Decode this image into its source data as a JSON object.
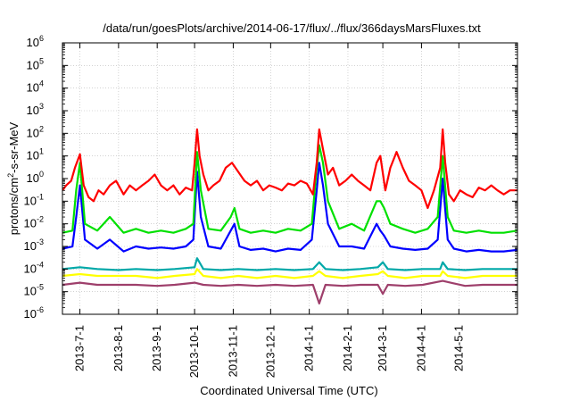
{
  "chart_data": {
    "type": "line",
    "title": "/data/run/goesPlots/archive/2014-06-17/flux/../flux/366daysMarsFluxes.txt",
    "xlabel": "Coordinated Universal Time (UTC)",
    "ylabel": {
      "base": "protons/cm",
      "sup": "2",
      "rest": "-s-sr-MeV"
    },
    "yscale": "log",
    "ylim": [
      1e-06,
      1000000.0
    ],
    "xlim": [
      "2013-06-17",
      "2014-06-17"
    ],
    "grid": true,
    "legend": "none",
    "yticks": [
      {
        "value": 1e-06,
        "base": "10",
        "exp": "-6"
      },
      {
        "value": 1e-05,
        "base": "10",
        "exp": "-5"
      },
      {
        "value": 0.0001,
        "base": "10",
        "exp": "-4"
      },
      {
        "value": 0.001,
        "base": "10",
        "exp": "-3"
      },
      {
        "value": 0.01,
        "base": "10",
        "exp": "-2"
      },
      {
        "value": 0.1,
        "base": "10",
        "exp": "-1"
      },
      {
        "value": 1,
        "base": "10",
        "exp": "0"
      },
      {
        "value": 10,
        "base": "10",
        "exp": "1"
      },
      {
        "value": 100,
        "base": "10",
        "exp": "2"
      },
      {
        "value": 1000,
        "base": "10",
        "exp": "3"
      },
      {
        "value": 10000,
        "base": "10",
        "exp": "4"
      },
      {
        "value": 100000,
        "base": "10",
        "exp": "5"
      },
      {
        "value": 1000000,
        "base": "10",
        "exp": "6"
      }
    ],
    "xticks": [
      {
        "date": "2013-07-01",
        "label": "2013-7-1"
      },
      {
        "date": "2013-08-01",
        "label": "2013-8-1"
      },
      {
        "date": "2013-09-01",
        "label": "2013-9-1"
      },
      {
        "date": "2013-10-01",
        "label": "2013-10-1"
      },
      {
        "date": "2013-11-01",
        "label": "2013-11-1"
      },
      {
        "date": "2013-12-01",
        "label": "2013-12-1"
      },
      {
        "date": "2014-01-01",
        "label": "2014-1-1"
      },
      {
        "date": "2014-02-01",
        "label": "2014-2-1"
      },
      {
        "date": "2014-03-01",
        "label": "2014-3-1"
      },
      {
        "date": "2014-04-01",
        "label": "2014-4-1"
      },
      {
        "date": "2014-05-01",
        "label": "2014-5-1"
      }
    ],
    "series": [
      {
        "color": "#ff0000",
        "x": [
          "2013-06-17",
          "2013-06-20",
          "2013-06-24",
          "2013-06-27",
          "2013-07-01",
          "2013-07-04",
          "2013-07-08",
          "2013-07-12",
          "2013-07-16",
          "2013-07-20",
          "2013-07-25",
          "2013-07-30",
          "2013-08-05",
          "2013-08-10",
          "2013-08-15",
          "2013-08-20",
          "2013-08-25",
          "2013-08-30",
          "2013-09-04",
          "2013-09-09",
          "2013-09-14",
          "2013-09-19",
          "2013-09-24",
          "2013-09-29",
          "2013-10-01",
          "2013-10-03",
          "2013-10-05",
          "2013-10-08",
          "2013-10-12",
          "2013-10-16",
          "2013-10-21",
          "2013-10-26",
          "2013-10-31",
          "2013-11-05",
          "2013-11-10",
          "2013-11-15",
          "2013-11-20",
          "2013-11-25",
          "2013-11-30",
          "2013-12-05",
          "2013-12-10",
          "2013-12-15",
          "2013-12-20",
          "2013-12-25",
          "2013-12-30",
          "2014-01-04",
          "2014-01-07",
          "2014-01-09",
          "2014-01-12",
          "2014-01-16",
          "2014-01-20",
          "2014-01-25",
          "2014-01-30",
          "2014-02-04",
          "2014-02-09",
          "2014-02-14",
          "2014-02-19",
          "2014-02-24",
          "2014-02-27",
          "2014-03-03",
          "2014-03-07",
          "2014-03-12",
          "2014-03-17",
          "2014-03-22",
          "2014-03-27",
          "2014-04-01",
          "2014-04-06",
          "2014-04-11",
          "2014-04-16",
          "2014-04-18",
          "2014-04-20",
          "2014-04-23",
          "2014-04-27",
          "2014-05-02",
          "2014-05-07",
          "2014-05-12",
          "2014-05-17",
          "2014-05-22",
          "2014-05-27",
          "2014-06-01",
          "2014-06-06",
          "2014-06-11",
          "2014-06-17"
        ],
        "values": [
          0.3,
          0.5,
          0.8,
          3,
          12,
          0.5,
          0.15,
          0.1,
          0.3,
          0.2,
          0.5,
          0.8,
          0.2,
          0.5,
          0.3,
          0.5,
          0.8,
          1.5,
          0.5,
          0.3,
          0.5,
          0.2,
          0.4,
          0.3,
          5,
          150,
          10,
          1.5,
          0.3,
          0.5,
          0.8,
          3,
          5,
          2,
          0.8,
          0.5,
          0.8,
          0.3,
          0.5,
          0.4,
          0.3,
          0.6,
          0.5,
          0.8,
          0.6,
          0.2,
          5,
          150,
          20,
          1.5,
          3,
          0.5,
          0.8,
          1.5,
          0.8,
          0.5,
          0.3,
          5,
          10,
          0.3,
          3,
          15,
          3,
          0.8,
          0.5,
          0.3,
          0.05,
          0.3,
          3,
          150,
          5,
          0.2,
          0.1,
          0.3,
          0.2,
          0.15,
          0.4,
          0.3,
          0.5,
          0.3,
          0.2,
          0.3,
          0.3
        ]
      },
      {
        "color": "#00e000",
        "x": [
          "2013-06-17",
          "2013-06-25",
          "2013-06-28",
          "2013-07-01",
          "2013-07-05",
          "2013-07-15",
          "2013-07-25",
          "2013-08-05",
          "2013-08-15",
          "2013-08-25",
          "2013-09-04",
          "2013-09-14",
          "2013-09-24",
          "2013-09-30",
          "2013-10-03",
          "2013-10-06",
          "2013-10-12",
          "2013-10-22",
          "2013-10-30",
          "2013-11-02",
          "2013-11-06",
          "2013-11-15",
          "2013-11-25",
          "2013-12-05",
          "2013-12-15",
          "2013-12-25",
          "2014-01-03",
          "2014-01-07",
          "2014-01-09",
          "2014-01-12",
          "2014-01-16",
          "2014-01-25",
          "2014-02-04",
          "2014-02-14",
          "2014-02-24",
          "2014-02-27",
          "2014-03-02",
          "2014-03-07",
          "2014-03-17",
          "2014-03-27",
          "2014-04-06",
          "2014-04-14",
          "2014-04-18",
          "2014-04-22",
          "2014-04-27",
          "2014-05-07",
          "2014-05-17",
          "2014-05-27",
          "2014-06-06",
          "2014-06-17"
        ],
        "values": [
          0.004,
          0.005,
          0.3,
          5,
          0.01,
          0.005,
          0.02,
          0.004,
          0.006,
          0.004,
          0.005,
          0.004,
          0.006,
          0.01,
          15,
          0.3,
          0.006,
          0.005,
          0.02,
          0.05,
          0.006,
          0.004,
          0.005,
          0.004,
          0.006,
          0.005,
          0.01,
          3,
          30,
          5,
          0.1,
          0.006,
          0.01,
          0.005,
          0.1,
          0.1,
          0.05,
          0.01,
          0.006,
          0.004,
          0.006,
          0.02,
          10,
          0.02,
          0.005,
          0.004,
          0.005,
          0.004,
          0.004,
          0.005
        ]
      },
      {
        "color": "#0000ff",
        "x": [
          "2013-06-17",
          "2013-06-25",
          "2013-06-28",
          "2013-07-01",
          "2013-07-05",
          "2013-07-15",
          "2013-07-25",
          "2013-08-05",
          "2013-08-15",
          "2013-08-25",
          "2013-09-04",
          "2013-09-14",
          "2013-09-24",
          "2013-09-30",
          "2013-10-03",
          "2013-10-06",
          "2013-10-12",
          "2013-10-22",
          "2013-10-30",
          "2013-11-02",
          "2013-11-06",
          "2013-11-15",
          "2013-11-25",
          "2013-12-05",
          "2013-12-15",
          "2013-12-25",
          "2014-01-03",
          "2014-01-07",
          "2014-01-09",
          "2014-01-12",
          "2014-01-16",
          "2014-01-25",
          "2014-02-04",
          "2014-02-14",
          "2014-02-24",
          "2014-02-27",
          "2014-03-02",
          "2014-03-07",
          "2014-03-17",
          "2014-03-27",
          "2014-04-06",
          "2014-04-14",
          "2014-04-18",
          "2014-04-22",
          "2014-04-27",
          "2014-05-07",
          "2014-05-17",
          "2014-05-27",
          "2014-06-06",
          "2014-06-17"
        ],
        "values": [
          0.0008,
          0.001,
          0.02,
          0.5,
          0.002,
          0.0008,
          0.002,
          0.0006,
          0.001,
          0.0008,
          0.0009,
          0.0008,
          0.001,
          0.002,
          2,
          0.02,
          0.001,
          0.0008,
          0.005,
          0.01,
          0.001,
          0.0007,
          0.0008,
          0.0006,
          0.0008,
          0.0007,
          0.002,
          0.3,
          5,
          0.5,
          0.01,
          0.001,
          0.001,
          0.0008,
          0.01,
          0.005,
          0.003,
          0.001,
          0.0008,
          0.0007,
          0.0008,
          0.002,
          1,
          0.002,
          0.0008,
          0.0006,
          0.0007,
          0.0006,
          0.0006,
          0.0007
        ]
      },
      {
        "color": "#00a8a8",
        "x": [
          "2013-06-17",
          "2013-07-01",
          "2013-07-15",
          "2013-08-01",
          "2013-08-15",
          "2013-09-01",
          "2013-09-15",
          "2013-10-01",
          "2013-10-03",
          "2013-10-08",
          "2013-10-22",
          "2013-11-05",
          "2013-11-20",
          "2013-12-05",
          "2013-12-20",
          "2014-01-04",
          "2014-01-09",
          "2014-01-14",
          "2014-01-28",
          "2014-02-11",
          "2014-02-25",
          "2014-03-01",
          "2014-03-05",
          "2014-03-19",
          "2014-04-02",
          "2014-04-16",
          "2014-04-18",
          "2014-04-22",
          "2014-05-06",
          "2014-05-20",
          "2014-06-03",
          "2014-06-17"
        ],
        "values": [
          0.0001,
          0.00012,
          0.0001,
          9e-05,
          0.0001,
          9e-05,
          0.0001,
          0.00012,
          0.0003,
          0.0001,
          9e-05,
          0.0001,
          9e-05,
          0.0001,
          9e-05,
          0.0001,
          0.0002,
          0.0001,
          9e-05,
          0.0001,
          0.00012,
          0.0002,
          0.0001,
          9e-05,
          0.0001,
          0.0001,
          0.0002,
          0.0001,
          9e-05,
          0.0001,
          0.0001,
          0.0001
        ]
      },
      {
        "color": "#ffff00",
        "x": [
          "2013-06-17",
          "2013-07-01",
          "2013-07-15",
          "2013-08-01",
          "2013-08-15",
          "2013-09-01",
          "2013-09-15",
          "2013-10-01",
          "2013-10-03",
          "2013-10-08",
          "2013-10-22",
          "2013-11-05",
          "2013-11-20",
          "2013-12-05",
          "2013-12-20",
          "2014-01-04",
          "2014-01-09",
          "2014-01-14",
          "2014-01-28",
          "2014-02-11",
          "2014-02-25",
          "2014-03-01",
          "2014-03-05",
          "2014-03-19",
          "2014-04-02",
          "2014-04-16",
          "2014-04-18",
          "2014-04-22",
          "2014-05-06",
          "2014-05-20",
          "2014-06-03",
          "2014-06-17"
        ],
        "values": [
          5e-05,
          6e-05,
          5e-05,
          5e-05,
          5e-05,
          4e-05,
          5e-05,
          6e-05,
          0.0001,
          5e-05,
          4e-05,
          5e-05,
          4e-05,
          5e-05,
          4e-05,
          5e-05,
          8e-05,
          5e-05,
          4e-05,
          5e-05,
          6e-05,
          8e-05,
          5e-05,
          4e-05,
          5e-05,
          5e-05,
          8e-05,
          5e-05,
          4e-05,
          5e-05,
          5e-05,
          5e-05
        ]
      },
      {
        "color": "#9e3f6b",
        "x": [
          "2013-06-17",
          "2013-07-01",
          "2013-07-15",
          "2013-08-01",
          "2013-08-15",
          "2013-09-01",
          "2013-09-15",
          "2013-10-01",
          "2013-10-08",
          "2013-10-22",
          "2013-11-05",
          "2013-11-20",
          "2013-12-05",
          "2013-12-20",
          "2014-01-04",
          "2014-01-09",
          "2014-01-14",
          "2014-01-28",
          "2014-02-11",
          "2014-02-25",
          "2014-03-01",
          "2014-03-05",
          "2014-03-19",
          "2014-04-02",
          "2014-04-18",
          "2014-05-06",
          "2014-05-20",
          "2014-06-03",
          "2014-06-17"
        ],
        "values": [
          2e-05,
          2.5e-05,
          2e-05,
          2e-05,
          2e-05,
          1.8e-05,
          2e-05,
          2.5e-05,
          2e-05,
          1.8e-05,
          2e-05,
          1.8e-05,
          2e-05,
          1.8e-05,
          2e-05,
          3e-06,
          2e-05,
          1.8e-05,
          2e-05,
          2e-05,
          8e-06,
          2e-05,
          1.8e-05,
          2e-05,
          3e-05,
          1.8e-05,
          2e-05,
          2e-05,
          2e-05
        ]
      }
    ]
  }
}
